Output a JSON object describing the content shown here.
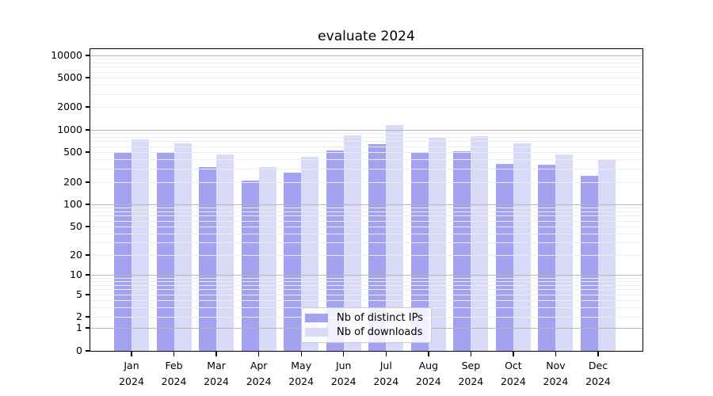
{
  "title": "evaluate 2024",
  "chart_data": {
    "type": "bar",
    "title": "evaluate 2024",
    "categories": [
      "Jan 2024",
      "Feb 2024",
      "Mar 2024",
      "Apr 2024",
      "May 2024",
      "Jun 2024",
      "Jul 2024",
      "Aug 2024",
      "Sep 2024",
      "Oct 2024",
      "Nov 2024",
      "Dec 2024"
    ],
    "series": [
      {
        "name": "Nb of distinct IPs",
        "color": "#a2a2f0",
        "values": [
          500,
          490,
          315,
          210,
          265,
          530,
          645,
          505,
          515,
          350,
          340,
          240
        ]
      },
      {
        "name": "Nb of downloads",
        "color": "#d9d9f8",
        "values": [
          750,
          660,
          465,
          315,
          430,
          850,
          1150,
          785,
          825,
          655,
          470,
          395
        ]
      }
    ],
    "xlabel": "",
    "ylabel": "",
    "yscale": "symlog",
    "yticks": [
      0,
      1,
      2,
      5,
      10,
      20,
      50,
      100,
      200,
      500,
      1000,
      2000,
      5000,
      10000
    ],
    "ylim": [
      0,
      12000
    ],
    "grid": "horizontal major and minor, drawn over bars",
    "legend_position": "inside bottom-center",
    "colors": {
      "bar_distinct_ips": "#a2a2f0",
      "bar_downloads": "#d9d9f8",
      "major_grid": "#b6b6b6",
      "minor_grid": "#ececec",
      "axis": "#000000"
    }
  }
}
